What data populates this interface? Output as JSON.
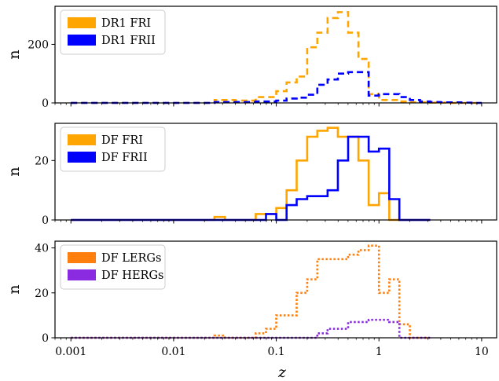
{
  "chart_data": [
    {
      "type": "line",
      "xscale": "log",
      "xlim": [
        0.0007,
        14
      ],
      "ylim": [
        0,
        330
      ],
      "ylabel": "n",
      "yticks": [
        0,
        200
      ],
      "grid": false,
      "legend_loc": "upper-left",
      "bin_edges": [
        0.001,
        0.00126,
        0.00158,
        0.002,
        0.00251,
        0.00316,
        0.00398,
        0.00501,
        0.00631,
        0.00794,
        0.01,
        0.0126,
        0.0158,
        0.02,
        0.0251,
        0.0316,
        0.0398,
        0.0501,
        0.0631,
        0.0794,
        0.1,
        0.126,
        0.158,
        0.2,
        0.251,
        0.316,
        0.398,
        0.501,
        0.631,
        0.794,
        1.0,
        1.26,
        1.58,
        2.0,
        2.51,
        3.16,
        3.98,
        5.01,
        6.31,
        7.94,
        10.0
      ],
      "series": [
        {
          "name": "DR1 FRI",
          "color": "#FFA500",
          "style": "dashed",
          "values": [
            0,
            0,
            0,
            0,
            0,
            0,
            0,
            0,
            0,
            0,
            0,
            0,
            0,
            0,
            10,
            10,
            8,
            8,
            20,
            20,
            40,
            70,
            90,
            190,
            240,
            290,
            310,
            240,
            150,
            30,
            10,
            10,
            5,
            2,
            2,
            1,
            1,
            0,
            0,
            0
          ]
        },
        {
          "name": "DR1 FRII",
          "color": "#0000FF",
          "style": "dashed",
          "values": [
            0,
            0,
            0,
            0,
            0,
            0,
            0,
            0,
            0,
            0,
            0,
            0,
            0,
            0,
            3,
            3,
            3,
            3,
            5,
            5,
            8,
            15,
            18,
            28,
            62,
            80,
            100,
            105,
            105,
            25,
            30,
            30,
            20,
            10,
            5,
            3,
            2,
            2,
            1,
            0
          ]
        }
      ]
    },
    {
      "type": "line",
      "xscale": "log",
      "xlim": [
        0.0007,
        14
      ],
      "ylim": [
        0,
        32.5
      ],
      "ylabel": "n",
      "yticks": [
        0,
        20
      ],
      "grid": false,
      "legend_loc": "upper-left",
      "bin_edges": [
        0.001,
        0.025,
        0.0316,
        0.0631,
        0.0794,
        0.1,
        0.126,
        0.158,
        0.2,
        0.251,
        0.316,
        0.398,
        0.501,
        0.631,
        0.794,
        1.0,
        1.26,
        1.58,
        2.0,
        2.51,
        3.16
      ],
      "series": [
        {
          "name": "DF FRI",
          "color": "#FFA500",
          "style": "solid",
          "values": [
            0,
            1,
            0,
            2,
            2,
            4,
            10,
            20,
            28,
            30,
            31,
            28,
            28,
            20,
            5,
            9,
            0,
            0,
            0,
            0
          ]
        },
        {
          "name": "DF FRII",
          "color": "#0000FF",
          "style": "solid",
          "values": [
            0,
            0,
            0,
            0,
            2,
            0,
            5,
            7,
            8,
            8,
            10,
            20,
            28,
            28,
            23,
            24,
            7,
            0,
            0,
            0
          ]
        }
      ]
    },
    {
      "type": "line",
      "xscale": "log",
      "xlim": [
        0.0007,
        14
      ],
      "ylim": [
        0,
        43
      ],
      "ylabel": "n",
      "yticks": [
        0,
        20,
        40
      ],
      "grid": false,
      "legend_loc": "upper-left",
      "xlabel": "z",
      "xticks": [
        "0.001",
        "0.01",
        "0.1",
        "1",
        "10"
      ],
      "bin_edges": [
        0.001,
        0.025,
        0.0316,
        0.0631,
        0.0794,
        0.1,
        0.158,
        0.2,
        0.251,
        0.316,
        0.501,
        0.631,
        0.794,
        1.0,
        1.26,
        1.58,
        2.0,
        2.51,
        3.16
      ],
      "series": [
        {
          "name": "DF LERGs",
          "color": "#FF7F0E",
          "style": "dotted",
          "values": [
            0,
            1,
            0,
            2,
            4,
            10,
            20,
            26,
            35,
            35,
            37,
            39,
            41,
            20,
            26,
            6,
            0,
            0
          ]
        },
        {
          "name": "DF HERGs",
          "color": "#8A2BE2",
          "style": "dotted",
          "values": [
            0,
            0,
            0,
            0,
            0,
            0,
            0,
            0,
            2,
            4,
            7,
            7,
            8,
            8,
            7,
            0,
            0,
            0
          ]
        }
      ]
    }
  ]
}
